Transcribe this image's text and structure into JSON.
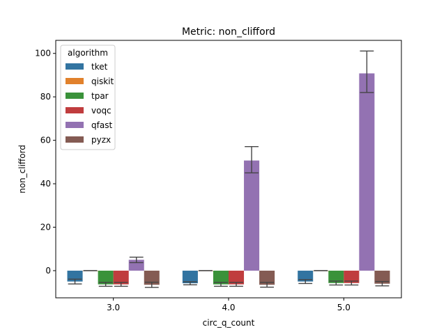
{
  "chart_data": {
    "type": "bar",
    "title": "Metric: non_clifford",
    "xlabel": "circ_q_count",
    "ylabel": "non_clifford",
    "categories": [
      "3.0",
      "4.0",
      "5.0"
    ],
    "ylim": [
      -12.5,
      106
    ],
    "yticks": [
      0,
      20,
      40,
      60,
      80,
      100
    ],
    "grid": false,
    "legend": {
      "title": "algorithm",
      "placement": "top-left"
    },
    "series": [
      {
        "name": "tket",
        "color": "#3274a1",
        "values": [
          -5,
          -5.8,
          -5
        ],
        "err_low": [
          -6.1,
          -6.5,
          -5.9
        ],
        "err_high": [
          -3.9,
          -5.1,
          -4.1
        ]
      },
      {
        "name": "qiskit",
        "color": "#e1812c",
        "values": [
          0,
          0,
          0
        ],
        "err_low": [
          0,
          0,
          0
        ],
        "err_high": [
          0,
          0,
          0
        ]
      },
      {
        "name": "tpar",
        "color": "#3a923a",
        "values": [
          -6.3,
          -6.3,
          -5.7
        ],
        "err_low": [
          -7.2,
          -7.2,
          -6.6
        ],
        "err_high": [
          -5.4,
          -5.4,
          -4.8
        ]
      },
      {
        "name": "voqc",
        "color": "#c03d3e",
        "values": [
          -6.3,
          -6.3,
          -5.7
        ],
        "err_low": [
          -7.2,
          -7.2,
          -6.6
        ],
        "err_high": [
          -5.4,
          -5.4,
          -4.8
        ]
      },
      {
        "name": "qfast",
        "color": "#9372b2",
        "values": [
          5,
          50.7,
          90.8
        ],
        "err_low": [
          3.7,
          45,
          82
        ],
        "err_high": [
          6.2,
          57.1,
          101.1
        ]
      },
      {
        "name": "pyzx",
        "color": "#845b53",
        "values": [
          -6.5,
          -6.5,
          -6
        ],
        "err_low": [
          -7.7,
          -7.6,
          -7
        ],
        "err_high": [
          -5.3,
          -5.4,
          -5
        ]
      }
    ]
  }
}
